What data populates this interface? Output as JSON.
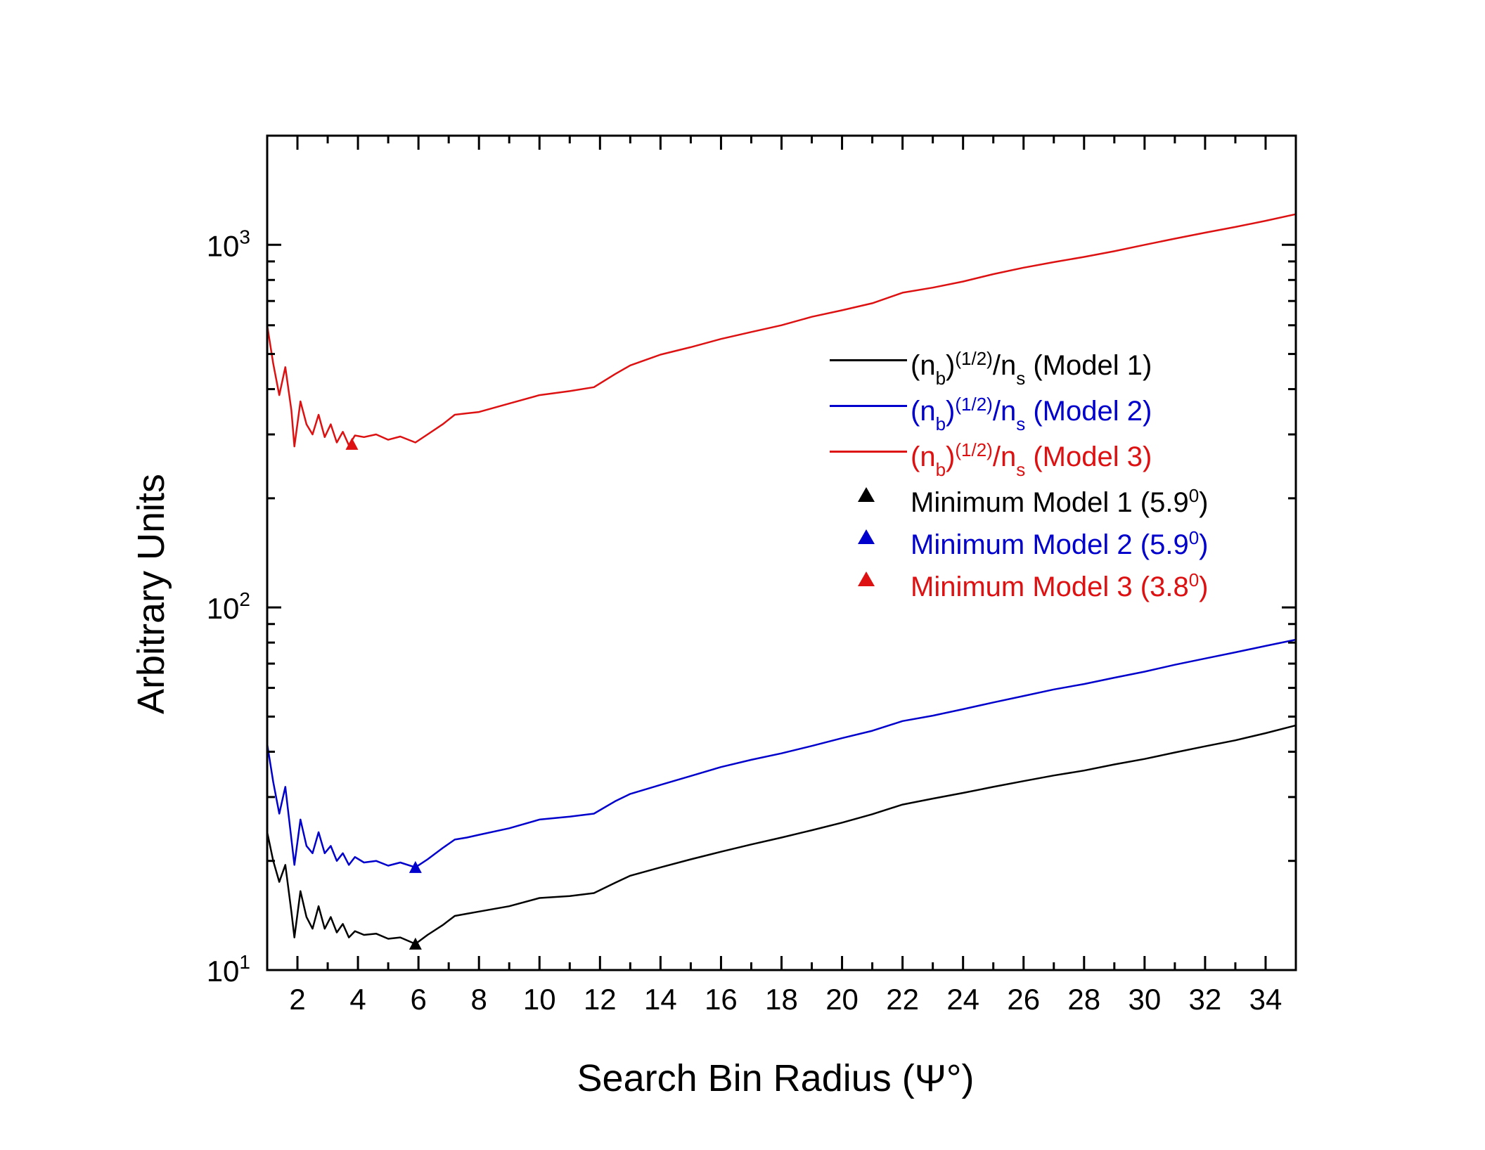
{
  "chart_data": {
    "type": "line",
    "title": "",
    "xlabel": "Search Bin Radius (Ψ°)",
    "ylabel": "Arbitrary Units",
    "xlim": [
      1,
      35
    ],
    "ylim": [
      10,
      2000
    ],
    "yscale": "log",
    "grid": false,
    "legend_position": "upper-right inside",
    "x_ticks": [
      2,
      4,
      6,
      8,
      10,
      12,
      14,
      16,
      18,
      20,
      22,
      24,
      26,
      28,
      30,
      32,
      34
    ],
    "x_tick_labels": [
      "2",
      "4",
      "6",
      "8",
      "10",
      "12",
      "14",
      "16",
      "18",
      "20",
      "22",
      "24",
      "26",
      "28",
      "30",
      "32",
      "34"
    ],
    "y_ticks": [
      10,
      100,
      1000
    ],
    "y_tick_labels": [
      {
        "base": "10",
        "exp": "1"
      },
      {
        "base": "10",
        "exp": "2"
      },
      {
        "base": "10",
        "exp": "3"
      }
    ],
    "series": [
      {
        "name": "(n_b)^(1/2)/n_s (Model 1)",
        "legend": {
          "pre": "(n",
          "sub1": "b",
          "mid": ")",
          "sup": "(1/2)",
          "slash": "/n",
          "sub2": "s",
          "post": " (Model 1)"
        },
        "color": "#000000",
        "x": [
          1.0,
          1.2,
          1.4,
          1.6,
          1.8,
          1.9,
          2.1,
          2.3,
          2.5,
          2.7,
          2.9,
          3.1,
          3.3,
          3.5,
          3.7,
          3.9,
          4.2,
          4.6,
          5.0,
          5.4,
          5.9,
          6.3,
          6.8,
          7.2,
          7.6,
          8.0,
          9.0,
          10.0,
          11.0,
          11.8,
          12.5,
          13.0,
          14.0,
          15.0,
          16.0,
          17.0,
          18.0,
          19.0,
          20.0,
          21.0,
          22.0,
          23.0,
          24.0,
          25.0,
          26.0,
          27.0,
          28.0,
          29.0,
          30.0,
          31.0,
          32.0,
          33.0,
          34.0,
          35.0
        ],
        "y": [
          24,
          20,
          17.5,
          19.5,
          14.5,
          12.3,
          16.5,
          14.0,
          13.0,
          15.0,
          13.0,
          14.0,
          12.7,
          13.4,
          12.3,
          12.8,
          12.5,
          12.6,
          12.2,
          12.3,
          11.8,
          12.5,
          13.3,
          14.1,
          14.3,
          14.5,
          15.0,
          15.8,
          16.0,
          16.3,
          17.4,
          18.2,
          19.2,
          20.2,
          21.2,
          22.2,
          23.2,
          24.3,
          25.5,
          26.9,
          28.6,
          29.7,
          30.8,
          32.0,
          33.2,
          34.4,
          35.5,
          36.9,
          38.2,
          39.8,
          41.4,
          43.0,
          45.0,
          47.3
        ]
      },
      {
        "name": "(n_b)^(1/2)/n_s (Model 2)",
        "legend": {
          "pre": "(n",
          "sub1": "b",
          "mid": ")",
          "sup": "(1/2)",
          "slash": "/n",
          "sub2": "s",
          "post": " (Model 2)"
        },
        "color": "#0000cc",
        "x": [
          1.0,
          1.2,
          1.4,
          1.6,
          1.8,
          1.9,
          2.1,
          2.3,
          2.5,
          2.7,
          2.9,
          3.1,
          3.3,
          3.5,
          3.7,
          3.9,
          4.2,
          4.6,
          5.0,
          5.4,
          5.9,
          6.3,
          6.8,
          7.2,
          7.6,
          8.0,
          9.0,
          10.0,
          11.0,
          11.8,
          12.5,
          13.0,
          14.0,
          15.0,
          16.0,
          17.0,
          18.0,
          19.0,
          20.0,
          21.0,
          22.0,
          23.0,
          24.0,
          25.0,
          26.0,
          27.0,
          28.0,
          29.0,
          30.0,
          31.0,
          32.0,
          33.0,
          34.0,
          35.0
        ],
        "y": [
          42,
          33,
          27,
          32,
          23,
          19.5,
          26,
          22,
          21,
          24,
          21,
          22,
          20,
          21,
          19.5,
          20.5,
          19.8,
          20.0,
          19.4,
          19.8,
          19.2,
          20.2,
          21.7,
          22.9,
          23.2,
          23.6,
          24.6,
          26.0,
          26.5,
          27.0,
          29.2,
          30.6,
          32.4,
          34.3,
          36.3,
          38.0,
          39.6,
          41.5,
          43.6,
          45.7,
          48.6,
          50.3,
          52.4,
          54.7,
          57.0,
          59.4,
          61.5,
          64.0,
          66.5,
          69.5,
          72.3,
          75.2,
          78.3,
          81.5
        ]
      },
      {
        "name": "(n_b)^(1/2)/n_s (Model 3)",
        "legend": {
          "pre": "(n",
          "sub1": "b",
          "mid": ")",
          "sup": "(1/2)",
          "slash": "/n",
          "sub2": "s",
          "post": " (Model 3)"
        },
        "color": "#dd1111",
        "x": [
          1.0,
          1.2,
          1.4,
          1.6,
          1.8,
          1.9,
          2.1,
          2.3,
          2.5,
          2.7,
          2.9,
          3.1,
          3.3,
          3.5,
          3.7,
          3.9,
          4.2,
          4.6,
          5.0,
          5.4,
          5.9,
          6.3,
          6.8,
          7.2,
          7.6,
          8.0,
          9.0,
          10.0,
          11.0,
          11.8,
          12.5,
          13.0,
          14.0,
          15.0,
          16.0,
          17.0,
          18.0,
          19.0,
          20.0,
          21.0,
          22.0,
          23.0,
          24.0,
          25.0,
          26.0,
          27.0,
          28.0,
          29.0,
          30.0,
          31.0,
          32.0,
          33.0,
          34.0,
          35.0
        ],
        "y": [
          600,
          470,
          385,
          460,
          350,
          278,
          370,
          320,
          300,
          340,
          295,
          320,
          285,
          305,
          280,
          298,
          295,
          300,
          290,
          296,
          285,
          300,
          320,
          340,
          343,
          346,
          365,
          385,
          395,
          405,
          440,
          465,
          498,
          522,
          550,
          575,
          600,
          633,
          660,
          690,
          738,
          762,
          792,
          830,
          865,
          896,
          926,
          960,
          1000,
          1040,
          1080,
          1120,
          1165,
          1215
        ]
      }
    ],
    "markers": [
      {
        "name": "Minimum Model 1 (5.9°)",
        "label_text": "Minimum Model 1 (5.9",
        "label_sup": "0",
        "label_close": ")",
        "color": "#000000",
        "x": 5.9,
        "y": 11.8
      },
      {
        "name": "Minimum Model 2 (5.9°)",
        "label_text": "Minimum Model 2 (5.9",
        "label_sup": "0",
        "label_close": ")",
        "color": "#0000cc",
        "x": 5.9,
        "y": 19.2
      },
      {
        "name": "Minimum Model 3 (3.8°)",
        "label_text": "Minimum Model 3 (3.8",
        "label_sup": "0",
        "label_close": ")",
        "color": "#dd1111",
        "x": 3.8,
        "y": 282
      }
    ]
  }
}
